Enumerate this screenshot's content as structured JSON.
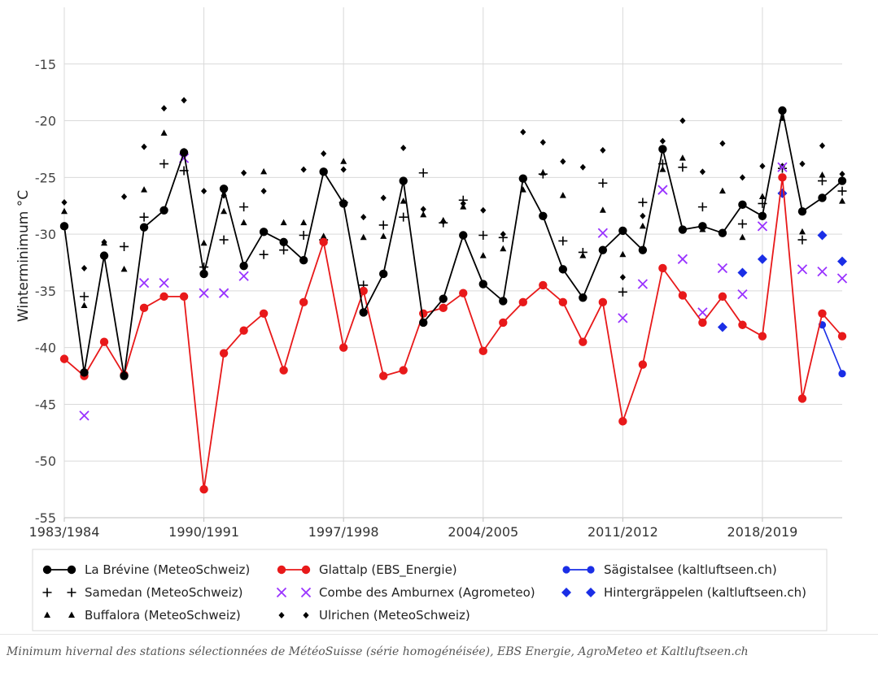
{
  "caption": "Minimum hivernal des stations sélectionnées de MétéoSuisse (série homogénéisée), EBS Energie, AgroMeteo et Kaltluftseen.ch",
  "chart_data": {
    "type": "line",
    "title": "",
    "xlabel": "",
    "ylabel": "Winterminimum °C",
    "ylim": [
      -55,
      -10
    ],
    "yticks": [
      -55,
      -50,
      -45,
      -40,
      -35,
      -30,
      -25,
      -20,
      -15
    ],
    "grid": true,
    "legend_position": "bottom",
    "x_start_year": 1983,
    "x_end_year": 2022,
    "x_tick_labels": [
      {
        "year": 1983,
        "label": "1983/1984"
      },
      {
        "year": 1990,
        "label": "1990/1991"
      },
      {
        "year": 1997,
        "label": "1997/1998"
      },
      {
        "year": 2004,
        "label": "2004/2005"
      },
      {
        "year": 2011,
        "label": "2011/2012"
      },
      {
        "year": 2018,
        "label": "2018/2019"
      }
    ],
    "series": [
      {
        "name": "La Brévine (MeteoSchweiz)",
        "style": "line-circle",
        "color": "#000000",
        "points": [
          [
            1983,
            -29.3
          ],
          [
            1984,
            -42.2
          ],
          [
            1985,
            -31.9
          ],
          [
            1986,
            -42.5
          ],
          [
            1987,
            -29.4
          ],
          [
            1988,
            -27.9
          ],
          [
            1989,
            -22.8
          ],
          [
            1990,
            -33.5
          ],
          [
            1991,
            -26.0
          ],
          [
            1992,
            -32.8
          ],
          [
            1993,
            -29.8
          ],
          [
            1994,
            -30.7
          ],
          [
            1995,
            -32.3
          ],
          [
            1996,
            -24.5
          ],
          [
            1997,
            -27.3
          ],
          [
            1998,
            -36.9
          ],
          [
            1999,
            -33.5
          ],
          [
            2000,
            -25.3
          ],
          [
            2001,
            -37.8
          ],
          [
            2002,
            -35.7
          ],
          [
            2003,
            -30.1
          ],
          [
            2004,
            -34.4
          ],
          [
            2005,
            -35.9
          ],
          [
            2006,
            -25.1
          ],
          [
            2007,
            -28.4
          ],
          [
            2008,
            -33.1
          ],
          [
            2009,
            -35.6
          ],
          [
            2010,
            -31.4
          ],
          [
            2011,
            -29.7
          ],
          [
            2012,
            -31.4
          ],
          [
            2013,
            -22.5
          ],
          [
            2014,
            -29.6
          ],
          [
            2015,
            -29.3
          ],
          [
            2016,
            -29.9
          ],
          [
            2017,
            -27.4
          ],
          [
            2018,
            -28.4
          ],
          [
            2019,
            -19.1
          ],
          [
            2020,
            -28.0
          ],
          [
            2021,
            -26.8
          ],
          [
            2022,
            -25.3
          ]
        ]
      },
      {
        "name": "Glattalp (EBS_Energie)",
        "style": "line-circle",
        "color": "#e8191a",
        "points": [
          [
            1983,
            -41.0
          ],
          [
            1984,
            -42.5
          ],
          [
            1985,
            -39.5
          ],
          [
            1986,
            -42.4
          ],
          [
            1987,
            -36.5
          ],
          [
            1988,
            -35.5
          ],
          [
            1989,
            -35.5
          ],
          [
            1990,
            -52.5
          ],
          [
            1991,
            -40.5
          ],
          [
            1992,
            -38.5
          ],
          [
            1993,
            -37.0
          ],
          [
            1994,
            -42.0
          ],
          [
            1995,
            -36.0
          ],
          [
            1996,
            -30.7
          ],
          [
            1997,
            -40.0
          ],
          [
            1998,
            -35.0
          ],
          [
            1999,
            -42.5
          ],
          [
            2000,
            -42.0
          ],
          [
            2001,
            -37.0
          ],
          [
            2002,
            -36.5
          ],
          [
            2003,
            -35.2
          ],
          [
            2004,
            -40.3
          ],
          [
            2005,
            -37.8
          ],
          [
            2006,
            -36.0
          ],
          [
            2007,
            -34.5
          ],
          [
            2008,
            -36.0
          ],
          [
            2009,
            -39.5
          ],
          [
            2010,
            -36.0
          ],
          [
            2011,
            -46.5
          ],
          [
            2012,
            -41.5
          ],
          [
            2013,
            -33.0
          ],
          [
            2014,
            -35.4
          ],
          [
            2015,
            -37.8
          ],
          [
            2016,
            -35.5
          ],
          [
            2017,
            -38.0
          ],
          [
            2018,
            -39.0
          ],
          [
            2019,
            -25.0
          ],
          [
            2020,
            -44.5
          ],
          [
            2021,
            -37.0
          ],
          [
            2022,
            -39.0
          ]
        ]
      },
      {
        "name": "Sägistalsee (kaltluftseen.ch)",
        "style": "line-circle-small",
        "color": "#1a2ee6",
        "points": [
          [
            2021,
            -38.0
          ],
          [
            2022,
            -42.3
          ]
        ]
      },
      {
        "name": "Samedan (MeteoSchweiz)",
        "style": "plus",
        "color": "#000000",
        "points": [
          [
            1984,
            -35.5
          ],
          [
            1986,
            -31.1
          ],
          [
            1987,
            -28.5
          ],
          [
            1988,
            -23.8
          ],
          [
            1989,
            -24.4
          ],
          [
            1990,
            -32.9
          ],
          [
            1991,
            -30.5
          ],
          [
            1992,
            -27.6
          ],
          [
            1993,
            -31.8
          ],
          [
            1994,
            -31.4
          ],
          [
            1995,
            -30.1
          ],
          [
            1996,
            -30.5
          ],
          [
            1997,
            -27.2
          ],
          [
            1998,
            -34.5
          ],
          [
            1999,
            -29.2
          ],
          [
            2000,
            -28.5
          ],
          [
            2001,
            -24.6
          ],
          [
            2002,
            -29.0
          ],
          [
            2003,
            -27.0
          ],
          [
            2004,
            -30.1
          ],
          [
            2005,
            -30.3
          ],
          [
            2007,
            -24.7
          ],
          [
            2008,
            -30.6
          ],
          [
            2009,
            -31.6
          ],
          [
            2010,
            -25.5
          ],
          [
            2011,
            -35.1
          ],
          [
            2012,
            -27.2
          ],
          [
            2013,
            -23.8
          ],
          [
            2014,
            -24.1
          ],
          [
            2015,
            -27.6
          ],
          [
            2017,
            -29.1
          ],
          [
            2018,
            -27.3
          ],
          [
            2019,
            -24.2
          ],
          [
            2020,
            -30.5
          ],
          [
            2021,
            -25.3
          ],
          [
            2022,
            -26.2
          ]
        ]
      },
      {
        "name": "Combe des Amburnex (Agrometeo)",
        "style": "cross",
        "color": "#9933ff",
        "points": [
          [
            1984,
            -46.0
          ],
          [
            1987,
            -34.3
          ],
          [
            1988,
            -34.3
          ],
          [
            1989,
            -23.3
          ],
          [
            1990,
            -35.2
          ],
          [
            1991,
            -35.2
          ],
          [
            1992,
            -33.7
          ],
          [
            2010,
            -29.9
          ],
          [
            2011,
            -37.4
          ],
          [
            2012,
            -34.4
          ],
          [
            2013,
            -26.1
          ],
          [
            2014,
            -32.2
          ],
          [
            2015,
            -36.9
          ],
          [
            2016,
            -33.0
          ],
          [
            2017,
            -35.3
          ],
          [
            2018,
            -29.3
          ],
          [
            2019,
            -24.1
          ],
          [
            2020,
            -33.1
          ],
          [
            2021,
            -33.3
          ],
          [
            2022,
            -33.9
          ]
        ]
      },
      {
        "name": "Hintergräppelen (kaltluftseen.ch)",
        "style": "diamond",
        "color": "#1a2ee6",
        "points": [
          [
            2016,
            -38.2
          ],
          [
            2017,
            -33.4
          ],
          [
            2018,
            -32.2
          ],
          [
            2019,
            -26.4
          ],
          [
            2021,
            -30.1
          ],
          [
            2022,
            -32.4
          ]
        ]
      },
      {
        "name": "Buffalora (MeteoSchweiz)",
        "style": "triangle",
        "color": "#000000",
        "points": [
          [
            1983,
            -28.0
          ],
          [
            1984,
            -36.3
          ],
          [
            1985,
            -30.8
          ],
          [
            1986,
            -33.1
          ],
          [
            1987,
            -26.1
          ],
          [
            1988,
            -21.1
          ],
          [
            1989,
            -22.7
          ],
          [
            1990,
            -30.8
          ],
          [
            1991,
            -28.0
          ],
          [
            1992,
            -29.0
          ],
          [
            1993,
            -24.5
          ],
          [
            1994,
            -29.0
          ],
          [
            1995,
            -29.0
          ],
          [
            1996,
            -30.2
          ],
          [
            1997,
            -23.6
          ],
          [
            1998,
            -30.3
          ],
          [
            1999,
            -30.2
          ],
          [
            2000,
            -27.1
          ],
          [
            2001,
            -28.3
          ],
          [
            2002,
            -28.8
          ],
          [
            2003,
            -27.6
          ],
          [
            2004,
            -31.9
          ],
          [
            2005,
            -31.3
          ],
          [
            2006,
            -26.1
          ],
          [
            2007,
            -24.6
          ],
          [
            2008,
            -26.6
          ],
          [
            2009,
            -31.9
          ],
          [
            2010,
            -27.9
          ],
          [
            2011,
            -31.8
          ],
          [
            2012,
            -29.3
          ],
          [
            2013,
            -24.3
          ],
          [
            2014,
            -23.3
          ],
          [
            2015,
            -29.6
          ],
          [
            2016,
            -26.2
          ],
          [
            2017,
            -30.3
          ],
          [
            2018,
            -26.7
          ],
          [
            2019,
            -19.8
          ],
          [
            2020,
            -29.8
          ],
          [
            2021,
            -24.8
          ],
          [
            2022,
            -27.1
          ]
        ]
      },
      {
        "name": "Ulrichen (MeteoSchweiz)",
        "style": "small-diamond",
        "color": "#000000",
        "points": [
          [
            1983,
            -27.2
          ],
          [
            1984,
            -33.0
          ],
          [
            1985,
            -30.7
          ],
          [
            1986,
            -26.7
          ],
          [
            1987,
            -22.3
          ],
          [
            1988,
            -18.9
          ],
          [
            1989,
            -18.2
          ],
          [
            1990,
            -26.2
          ],
          [
            1991,
            -26.6
          ],
          [
            1992,
            -24.6
          ],
          [
            1993,
            -26.2
          ],
          [
            1994,
            -30.8
          ],
          [
            1995,
            -24.3
          ],
          [
            1996,
            -22.9
          ],
          [
            1997,
            -24.3
          ],
          [
            1998,
            -28.5
          ],
          [
            1999,
            -26.8
          ],
          [
            2000,
            -22.4
          ],
          [
            2001,
            -27.8
          ],
          [
            2002,
            -28.9
          ],
          [
            2003,
            -27.3
          ],
          [
            2004,
            -27.9
          ],
          [
            2005,
            -30.0
          ],
          [
            2006,
            -21.0
          ],
          [
            2007,
            -21.9
          ],
          [
            2008,
            -23.6
          ],
          [
            2009,
            -24.1
          ],
          [
            2010,
            -22.6
          ],
          [
            2011,
            -33.8
          ],
          [
            2012,
            -28.4
          ],
          [
            2013,
            -21.8
          ],
          [
            2014,
            -20.0
          ],
          [
            2015,
            -24.5
          ],
          [
            2016,
            -22.0
          ],
          [
            2017,
            -25.0
          ],
          [
            2018,
            -24.0
          ],
          [
            2019,
            -24.0
          ],
          [
            2020,
            -23.8
          ],
          [
            2021,
            -22.2
          ],
          [
            2022,
            -24.7
          ]
        ]
      }
    ]
  }
}
